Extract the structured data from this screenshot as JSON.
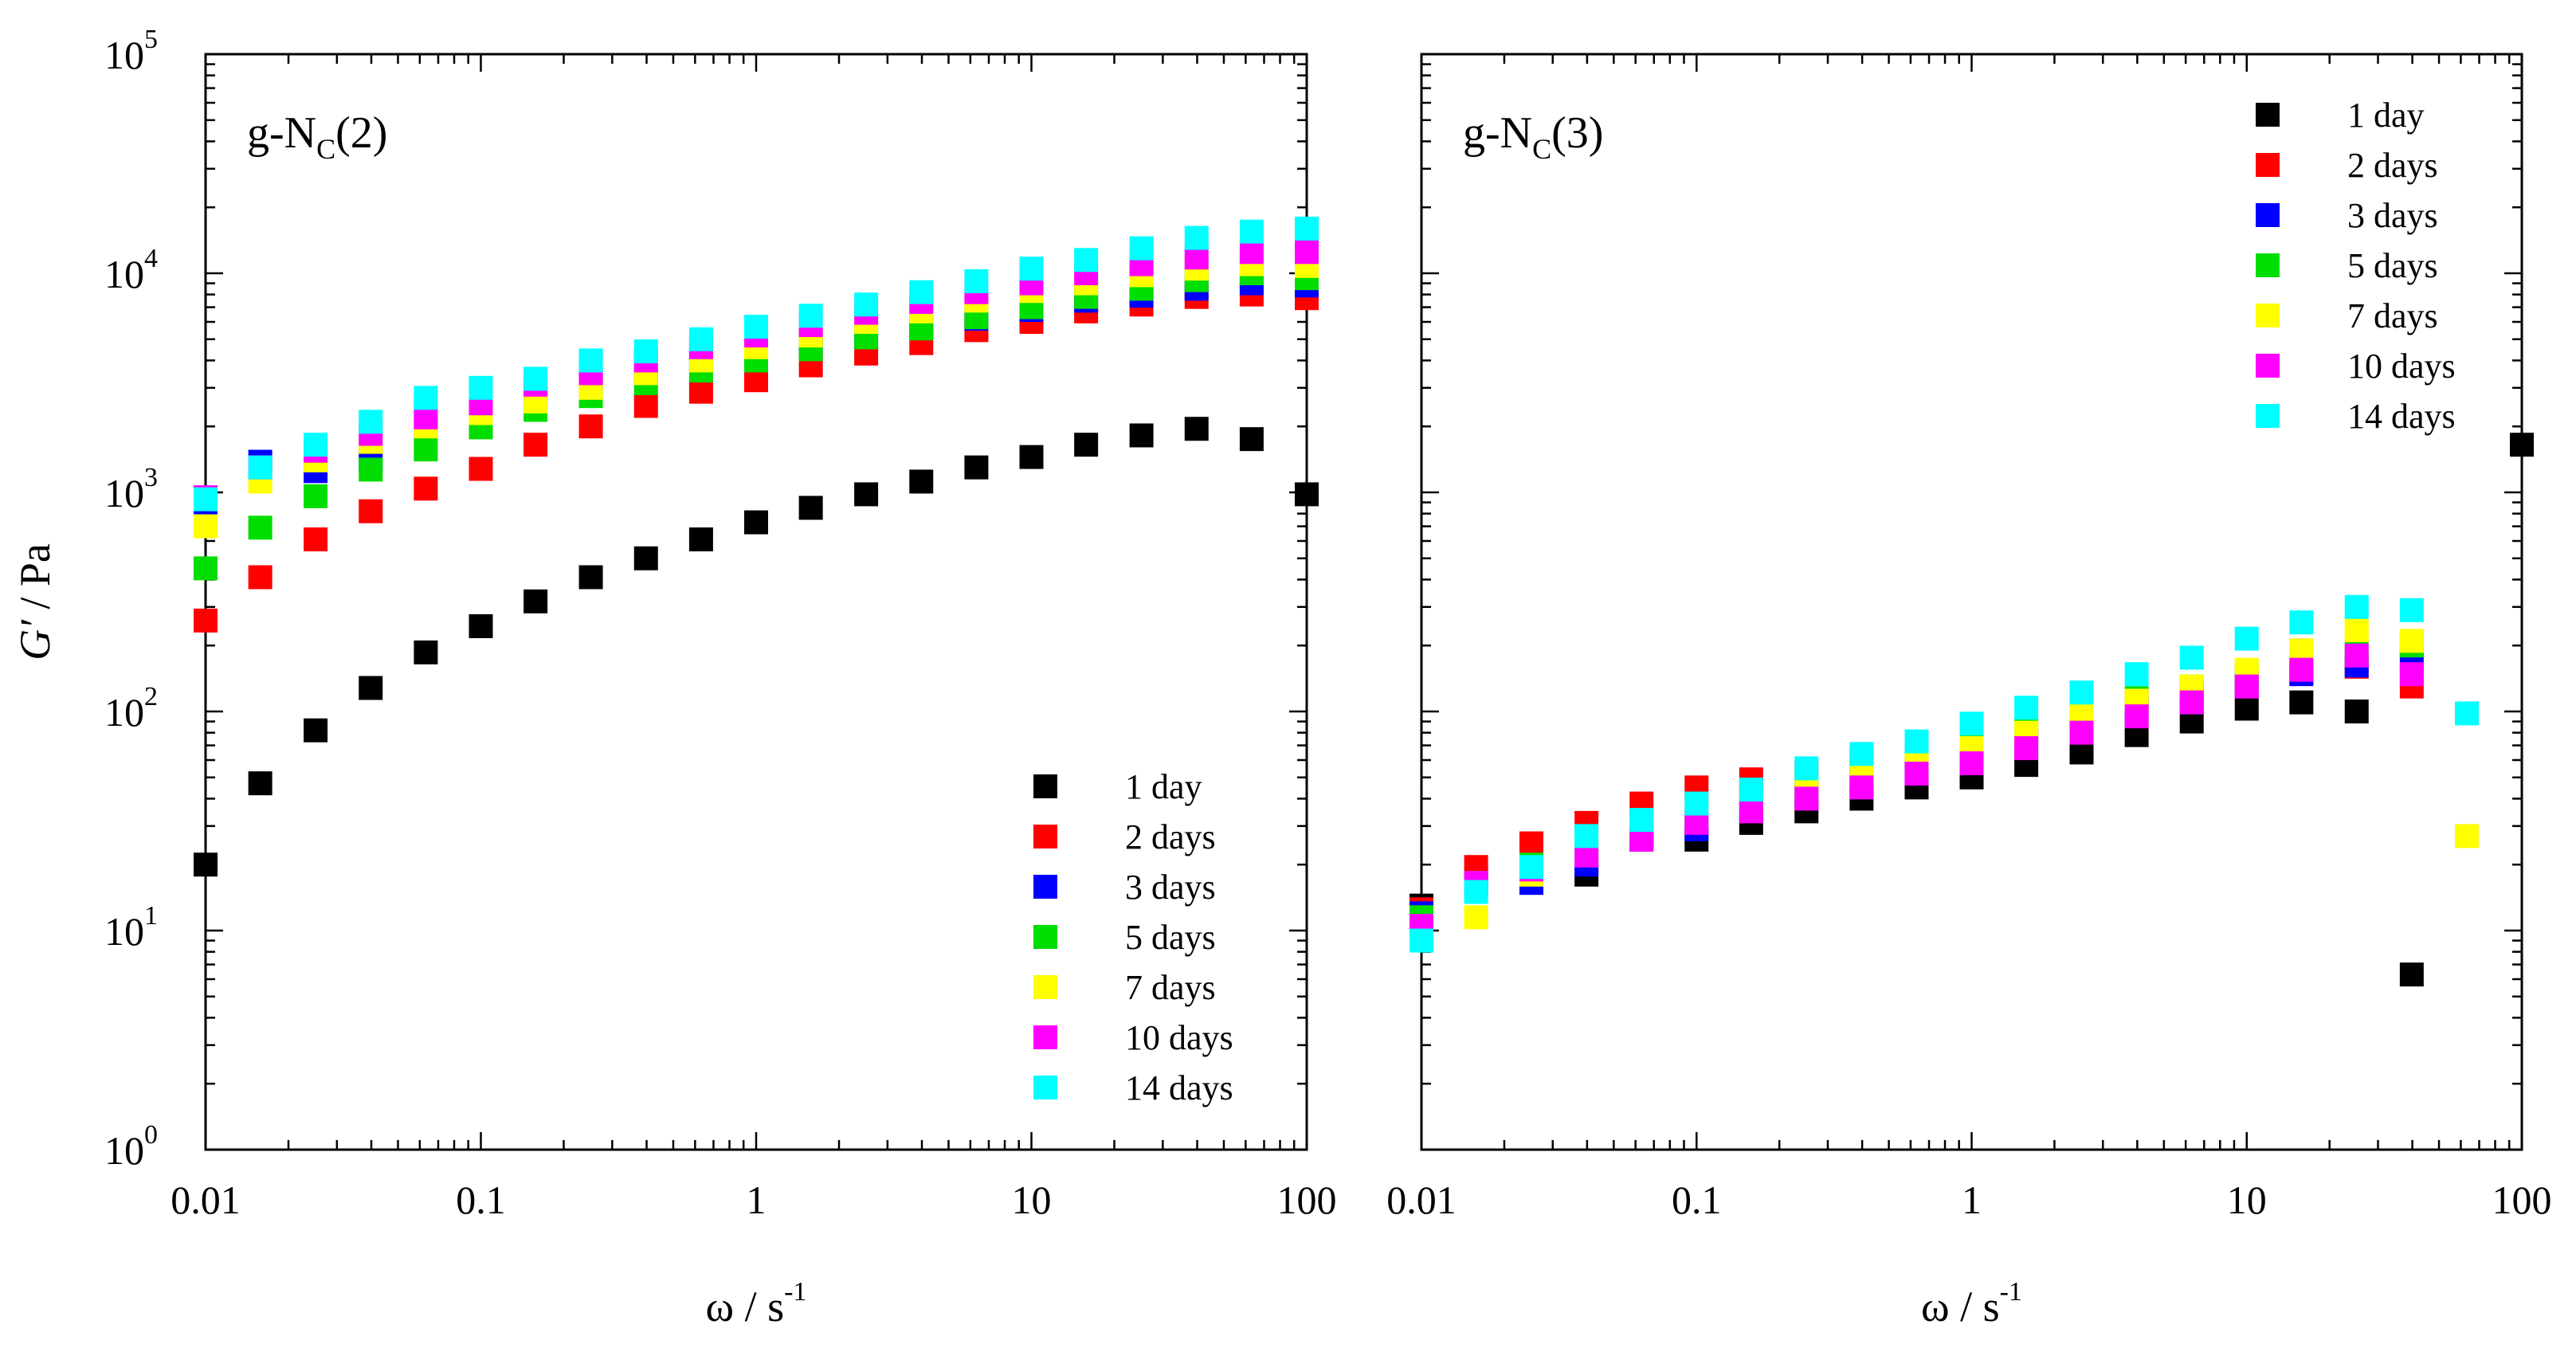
{
  "chart_data": [
    {
      "type": "scatter",
      "title": "g-N_C(2)",
      "panel_label": {
        "main": "g-N",
        "sub": "C",
        "tail": "(2)"
      },
      "xlabel": {
        "main": "ω / s",
        "sup": "-1"
      },
      "ylabel": {
        "italic": "G′",
        "rest": " / Pa"
      },
      "xscale": "log",
      "yscale": "log",
      "xlim": [
        0.01,
        100
      ],
      "ylim": [
        1,
        100000
      ],
      "xticks": [
        {
          "v": 0.01,
          "t": "0.01"
        },
        {
          "v": 0.1,
          "t": "0.1"
        },
        {
          "v": 1,
          "t": "1"
        },
        {
          "v": 10,
          "t": "10"
        },
        {
          "v": 100,
          "t": "100"
        }
      ],
      "yticks": [
        {
          "v": 1,
          "base": "10",
          "exp": "0"
        },
        {
          "v": 10,
          "base": "10",
          "exp": "1"
        },
        {
          "v": 100,
          "base": "10",
          "exp": "2"
        },
        {
          "v": 1000,
          "base": "10",
          "exp": "3"
        },
        {
          "v": 10000,
          "base": "10",
          "exp": "4"
        },
        {
          "v": 100000,
          "base": "10",
          "exp": "5"
        }
      ],
      "legend_position": "bottom-right",
      "x": [
        0.01,
        0.0158,
        0.0251,
        0.0398,
        0.0631,
        0.1,
        0.158,
        0.251,
        0.398,
        0.631,
        1,
        1.58,
        2.51,
        3.98,
        6.31,
        10,
        15.8,
        25.1,
        39.8,
        63.1,
        100
      ],
      "series": [
        {
          "name": "1 day",
          "color": "#000000",
          "values": [
            20,
            47,
            82,
            128,
            186,
            245,
            318,
            410,
            500,
            610,
            730,
            850,
            980,
            1120,
            1300,
            1450,
            1650,
            1820,
            1950,
            1750,
            980
          ]
        },
        {
          "name": "2 days",
          "color": "#ff0000",
          "values": [
            260,
            410,
            610,
            820,
            1040,
            1280,
            1650,
            2000,
            2480,
            2880,
            3250,
            3800,
            4300,
            4800,
            5500,
            6000,
            6700,
            7200,
            7800,
            8000,
            7700
          ]
        },
        {
          "name": "3 days",
          "color": "#0000ff",
          "values": [
            900,
            1380,
            1250,
            1400,
            2000,
            2400,
            2800,
            3200,
            3600,
            4000,
            4300,
            4800,
            5200,
            5700,
            6200,
            6800,
            7500,
            7900,
            8500,
            9000,
            8800
          ]
        },
        {
          "name": "5 days",
          "color": "#00dd00",
          "values": [
            450,
            690,
            960,
            1270,
            1570,
            1980,
            2380,
            2750,
            3150,
            3600,
            4000,
            4500,
            5100,
            5600,
            6300,
            7000,
            7800,
            8500,
            9300,
            10000,
            9500
          ]
        },
        {
          "name": "7 days",
          "color": "#ffff00",
          "values": [
            700,
            1120,
            1400,
            1700,
            2000,
            2300,
            2600,
            3000,
            3500,
            4000,
            4600,
            5200,
            6000,
            6700,
            7500,
            8300,
            9000,
            9800,
            10500,
            11000,
            10800
          ]
        },
        {
          "name": "10 days",
          "color": "#ff00ff",
          "values": [
            950,
            1300,
            1550,
            1850,
            2200,
            2550,
            3100,
            3500,
            4000,
            4600,
            5200,
            5800,
            6600,
            7400,
            8200,
            9000,
            10000,
            11000,
            11800,
            12500,
            12500
          ]
        },
        {
          "name": "14 days",
          "color": "#00ffff",
          "values": [
            930,
            1300,
            1650,
            2100,
            2700,
            3000,
            3300,
            4000,
            4400,
            5000,
            5700,
            6400,
            7200,
            8200,
            9200,
            10500,
            11500,
            13000,
            14500,
            15500,
            16000
          ]
        }
      ]
    },
    {
      "type": "scatter",
      "title": "g-N_C(3)",
      "panel_label": {
        "main": "g-N",
        "sub": "C",
        "tail": "(3)"
      },
      "xlabel": {
        "main": "ω / s",
        "sup": "-1"
      },
      "xscale": "log",
      "yscale": "log",
      "xlim": [
        0.01,
        100
      ],
      "ylim": [
        1,
        100000
      ],
      "xticks": [
        {
          "v": 0.01,
          "t": "0.01"
        },
        {
          "v": 0.1,
          "t": "0.1"
        },
        {
          "v": 1,
          "t": "1"
        },
        {
          "v": 10,
          "t": "10"
        },
        {
          "v": 100,
          "t": "100"
        }
      ],
      "legend_position": "top-right",
      "x": [
        0.01,
        0.0158,
        0.0251,
        0.0398,
        0.0631,
        0.1,
        0.158,
        0.251,
        0.398,
        0.631,
        1,
        1.58,
        2.51,
        3.98,
        6.31,
        10,
        15.8,
        25.1,
        39.8,
        63.1,
        100
      ],
      "series": [
        {
          "name": "1 day",
          "color": "#000000",
          "values": [
            13,
            17,
            17,
            18,
            26,
            26,
            31,
            35,
            40,
            45,
            50,
            57,
            65,
            78,
            90,
            103,
            110,
            100,
            6.3,
            null,
            1650
          ]
        },
        {
          "name": "2 days",
          "color": "#ff0000",
          "values": [
            12.5,
            19.5,
            25,
            31,
            38,
            45,
            49,
            53,
            60,
            62,
            70,
            80,
            95,
            113,
            120,
            140,
            150,
            160,
            130,
            null,
            null
          ]
        },
        {
          "name": "3 days",
          "color": "#0000ff",
          "values": [
            12,
            16,
            16.5,
            20,
            27,
            29,
            36,
            42,
            48,
            55,
            62,
            73,
            86,
            102,
            116,
            132,
            148,
            162,
            170,
            null,
            null
          ]
        },
        {
          "name": "5 days",
          "color": "#00dd00",
          "values": [
            11.5,
            16.5,
            20,
            25,
            29,
            34,
            40,
            46,
            53,
            60,
            70,
            82,
            98,
            115,
            130,
            150,
            170,
            190,
            200,
            null,
            null
          ]
        },
        {
          "name": "7 days",
          "color": "#ffff00",
          "values": [
            9.5,
            11.5,
            18,
            23,
            28,
            34,
            38,
            45,
            52,
            60,
            68,
            80,
            96,
            112,
            130,
            155,
            190,
            235,
            210,
            27,
            null
          ]
        },
        {
          "name": "10 days",
          "color": "#ff00ff",
          "values": [
            10.5,
            16.5,
            19,
            22,
            26,
            31,
            35,
            40,
            45,
            52,
            58,
            68,
            80,
            95,
            110,
            130,
            155,
            180,
            148,
            null,
            null
          ]
        },
        {
          "name": "14 days",
          "color": "#00ffff",
          "values": [
            9,
            15,
            19.5,
            27,
            32,
            38,
            44,
            55,
            64,
            73,
            88,
            104,
            122,
            148,
            176,
            215,
            255,
            300,
            290,
            98,
            null
          ]
        }
      ]
    }
  ]
}
